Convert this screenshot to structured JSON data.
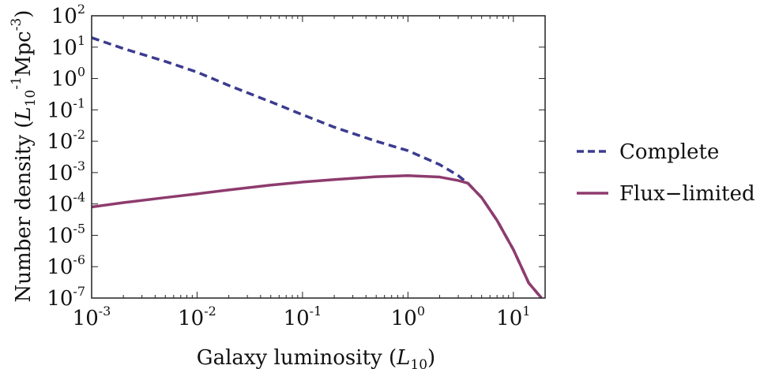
{
  "chart_data": {
    "type": "line",
    "xscale": "log",
    "yscale": "log",
    "xlim": [
      0.001,
      20
    ],
    "ylim": [
      1e-07,
      100
    ],
    "xlabel": {
      "main": "Galaxy luminosity (",
      "var": "L",
      "sub": "10",
      "end": ")"
    },
    "ylabel": {
      "main": "Number density (",
      "var": "L",
      "sub": "10",
      "sup1": "-1",
      "unit": "Mpc",
      "sup2": "-3",
      "end": ")"
    },
    "xticks": [
      {
        "value": 0.001,
        "base": "10",
        "exp": "-3"
      },
      {
        "value": 0.01,
        "base": "10",
        "exp": "-2"
      },
      {
        "value": 0.1,
        "base": "10",
        "exp": "-1"
      },
      {
        "value": 1,
        "base": "10",
        "exp": "0"
      },
      {
        "value": 10,
        "base": "10",
        "exp": "1"
      }
    ],
    "yticks": [
      {
        "value": 1e-07,
        "base": "10",
        "exp": "-7"
      },
      {
        "value": 1e-06,
        "base": "10",
        "exp": "-6"
      },
      {
        "value": 1e-05,
        "base": "10",
        "exp": "-5"
      },
      {
        "value": 0.0001,
        "base": "10",
        "exp": "-4"
      },
      {
        "value": 0.001,
        "base": "10",
        "exp": "-3"
      },
      {
        "value": 0.01,
        "base": "10",
        "exp": "-2"
      },
      {
        "value": 0.1,
        "base": "10",
        "exp": "-1"
      },
      {
        "value": 1,
        "base": "10",
        "exp": "0"
      },
      {
        "value": 10,
        "base": "10",
        "exp": "1"
      },
      {
        "value": 100,
        "base": "10",
        "exp": "2"
      }
    ],
    "legend_position": "right",
    "series": [
      {
        "name": "Complete",
        "style": "dashed",
        "color": "#3b3b8f",
        "x": [
          0.001,
          0.002,
          0.005,
          0.01,
          0.02,
          0.05,
          0.1,
          0.2,
          0.5,
          1,
          2,
          3,
          3.7,
          5,
          7,
          10,
          14,
          18.5
        ],
        "y": [
          20,
          9,
          3.5,
          1.6,
          0.6,
          0.18,
          0.07,
          0.028,
          0.01,
          0.005,
          0.0018,
          0.0008,
          0.00046,
          0.00016,
          3e-05,
          3.5e-06,
          3e-07,
          1e-07
        ]
      },
      {
        "name": "Flux−limited",
        "style": "solid",
        "color": "#8e3b6e",
        "x": [
          0.001,
          0.002,
          0.005,
          0.01,
          0.02,
          0.05,
          0.1,
          0.2,
          0.5,
          1,
          2,
          3,
          3.7,
          5,
          7,
          10,
          14,
          18.5
        ],
        "y": [
          8e-05,
          0.00011,
          0.00016,
          0.00021,
          0.00028,
          0.0004,
          0.0005,
          0.0006,
          0.00074,
          0.0008,
          0.00072,
          0.00056,
          0.00046,
          0.00016,
          3e-05,
          3.5e-06,
          3e-07,
          1e-07
        ]
      }
    ]
  }
}
